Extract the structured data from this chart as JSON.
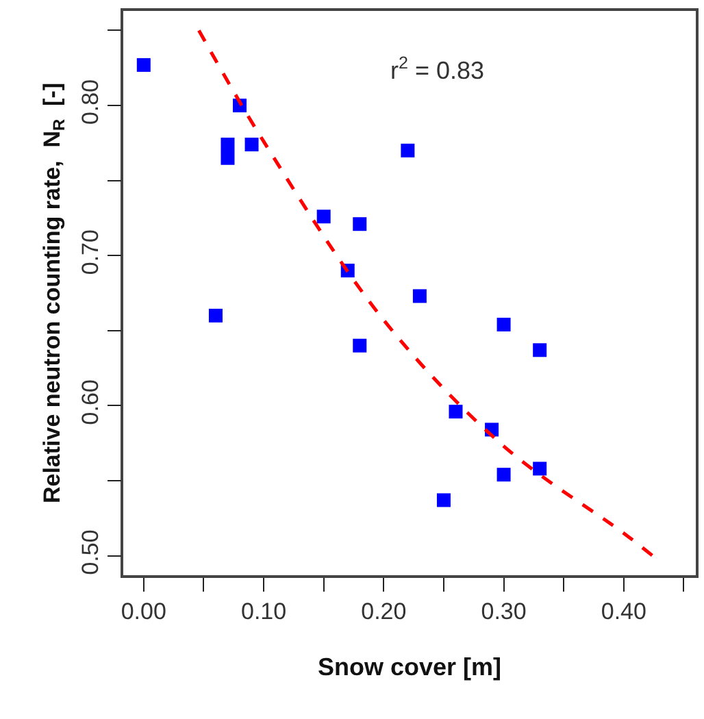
{
  "chart_data": {
    "type": "scatter",
    "xlabel": "Snow cover [m]",
    "ylabel": "Relative neutron counting rate,  N$_{R}$  [-]",
    "annotations": [
      "r$^{2}$ = 0.83"
    ],
    "xlim": [
      -0.017,
      0.46
    ],
    "ylim": [
      0.487,
      0.863
    ],
    "xticks": [
      {
        "value": 0.0,
        "label": "0.00"
      },
      {
        "value": 0.05,
        "label": null
      },
      {
        "value": 0.1,
        "label": "0.10"
      },
      {
        "value": 0.15,
        "label": null
      },
      {
        "value": 0.2,
        "label": "0.20"
      },
      {
        "value": 0.25,
        "label": null
      },
      {
        "value": 0.3,
        "label": "0.30"
      },
      {
        "value": 0.35,
        "label": null
      },
      {
        "value": 0.4,
        "label": "0.40"
      },
      {
        "value": 0.45,
        "label": null
      }
    ],
    "yticks": [
      {
        "value": 0.5,
        "label": "0.50"
      },
      {
        "value": 0.55,
        "label": null
      },
      {
        "value": 0.6,
        "label": "0.60"
      },
      {
        "value": 0.65,
        "label": null
      },
      {
        "value": 0.7,
        "label": "0.70"
      },
      {
        "value": 0.75,
        "label": null
      },
      {
        "value": 0.8,
        "label": "0.80"
      },
      {
        "value": 0.85,
        "label": null
      }
    ],
    "legend": false,
    "series": [
      {
        "color": "#0000ff",
        "marker": "square",
        "x": [
          0.0,
          0.08,
          0.07,
          0.07,
          0.09,
          0.06,
          0.15,
          0.18,
          0.17,
          0.18,
          0.22,
          0.23,
          0.26,
          0.29,
          0.3,
          0.33,
          0.3,
          0.33,
          0.25
        ],
        "values": [
          0.827,
          0.8,
          0.774,
          0.765,
          0.774,
          0.66,
          0.726,
          0.721,
          0.69,
          0.64,
          0.77,
          0.673,
          0.596,
          0.584,
          0.654,
          0.637,
          0.554,
          0.558,
          0.537
        ]
      },
      {
        "type": "line",
        "color": "#ff0000",
        "line_style": "dashed",
        "x": [
          0.046,
          0.1,
          0.2,
          0.3,
          0.4,
          0.424
        ],
        "values": [
          0.85,
          0.776,
          0.657,
          0.573,
          0.515,
          0.5
        ]
      }
    ]
  }
}
